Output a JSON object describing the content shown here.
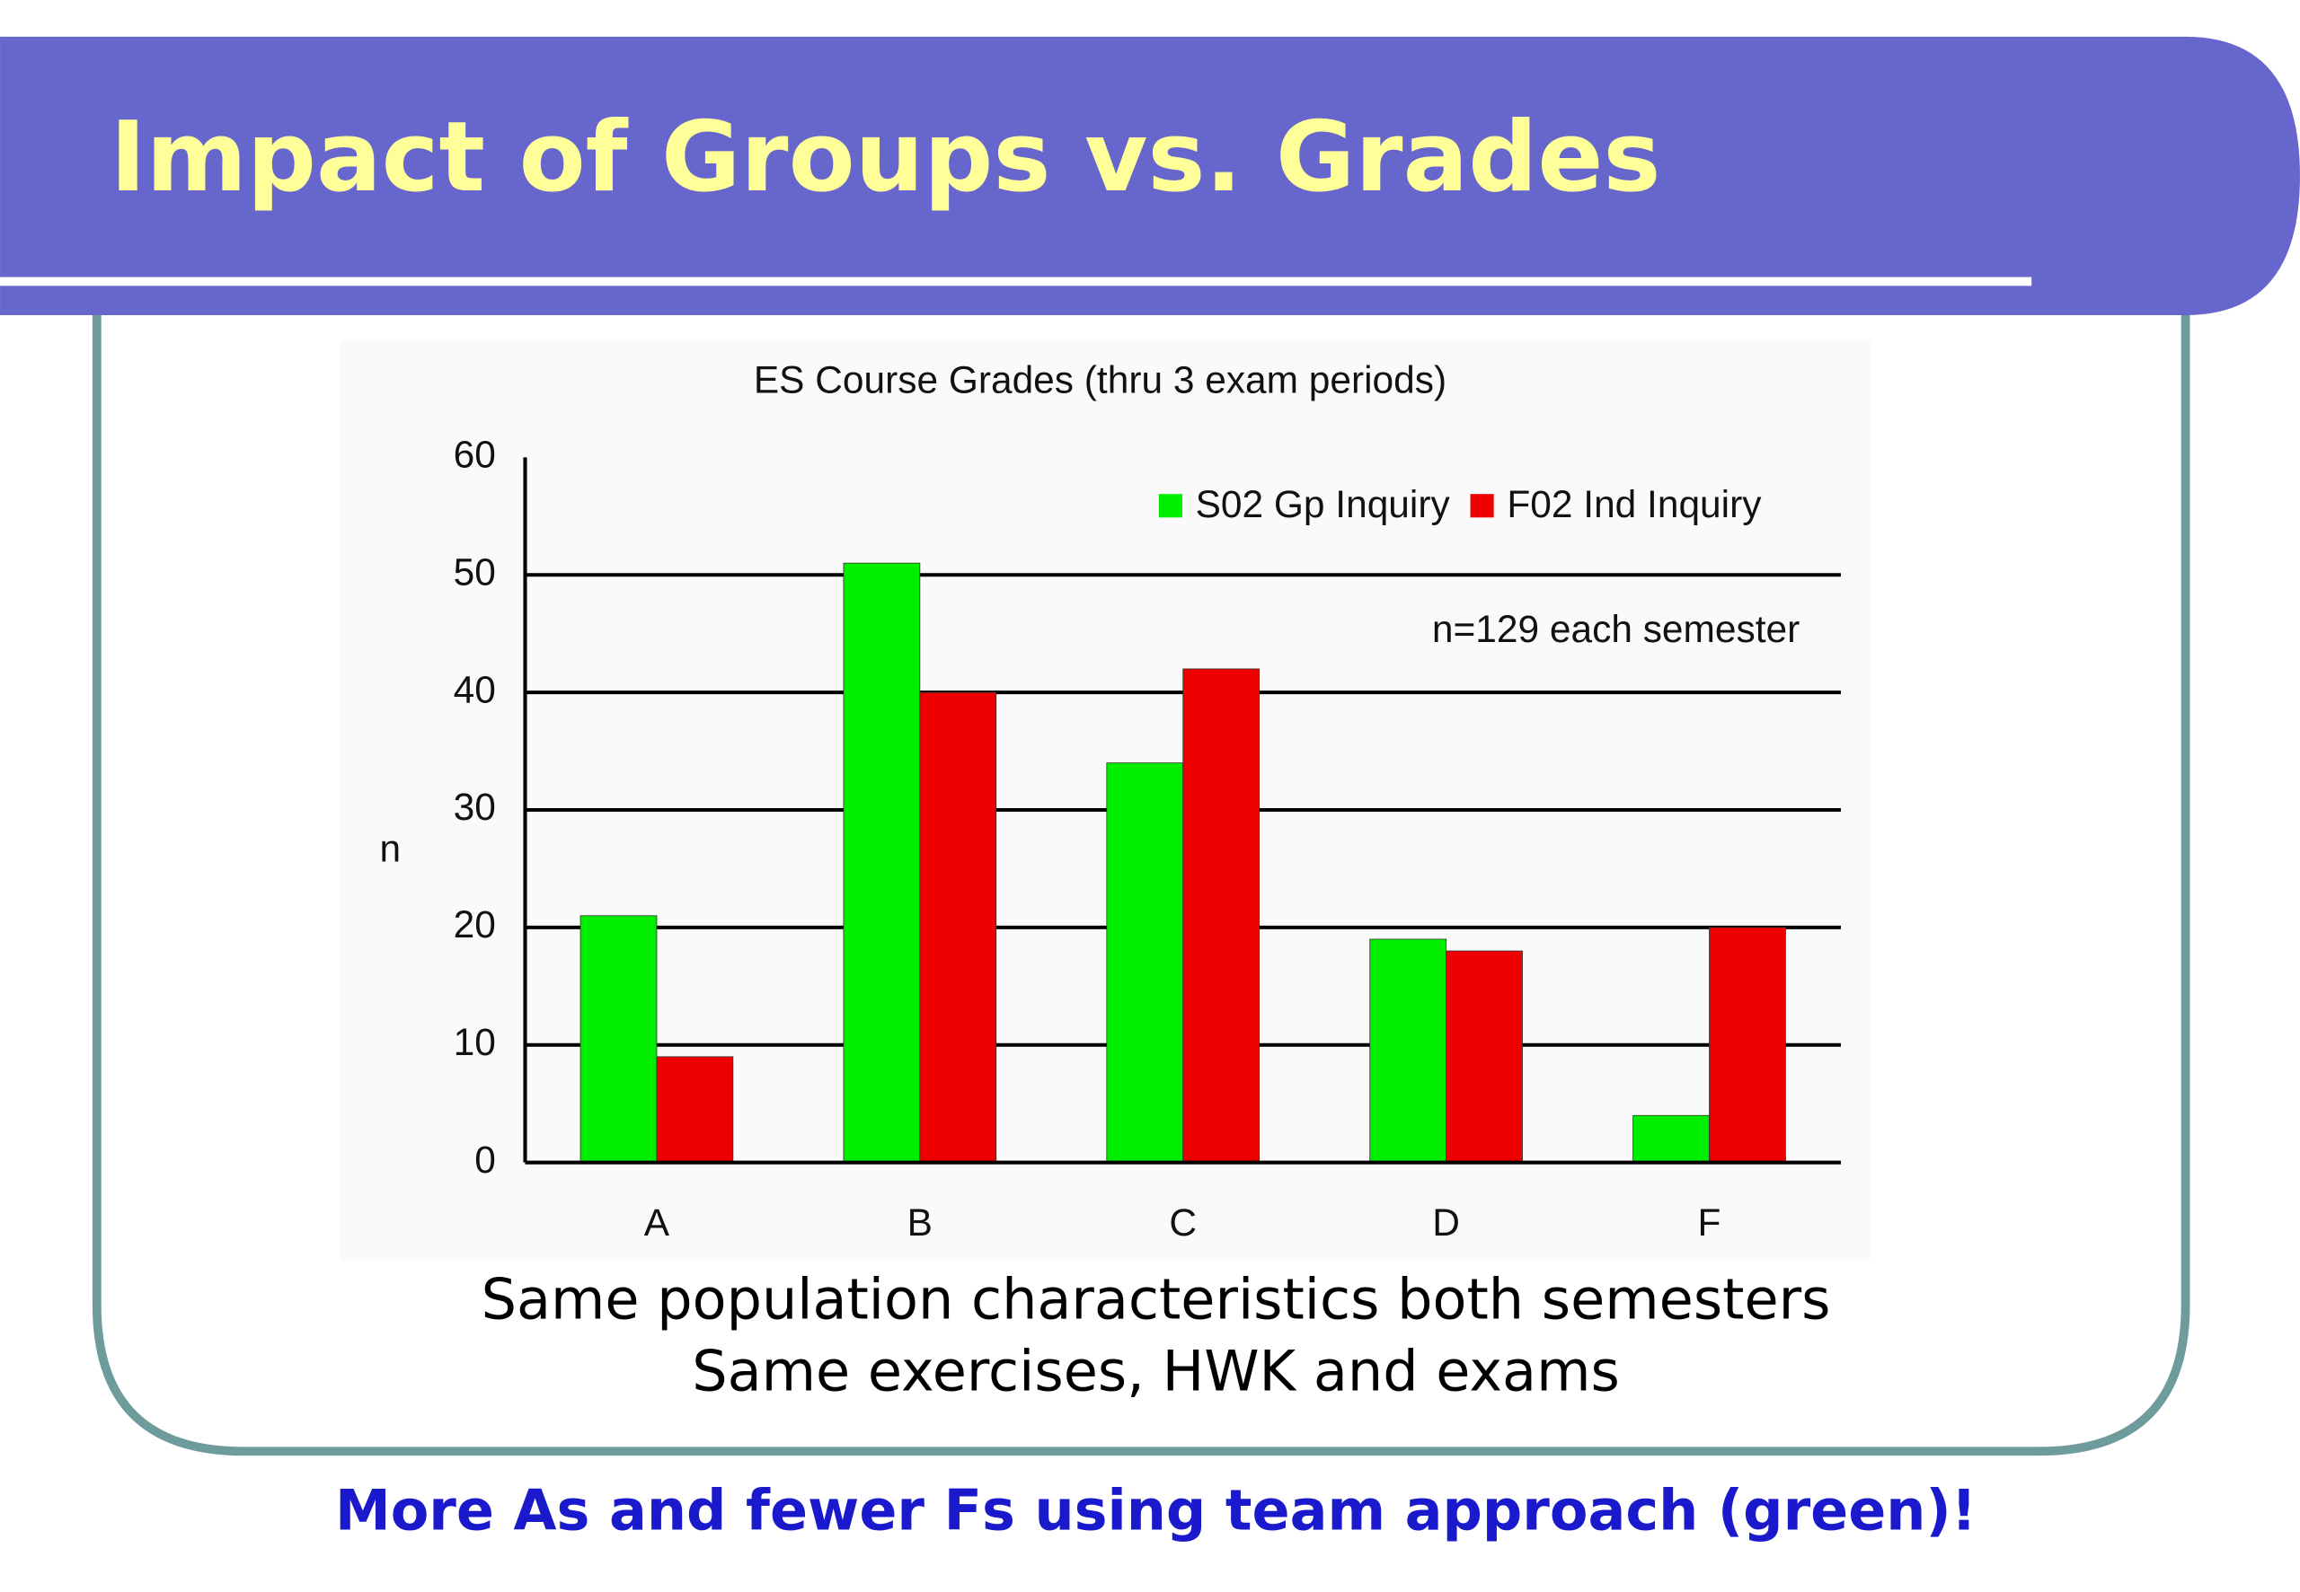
{
  "slide": {
    "title": "Impact of Groups vs. Grades",
    "notes": [
      "Same population characteristics both semesters",
      "Same exercises, HWK and exams"
    ],
    "footer": "More As and fewer Fs using team approach (green)!"
  },
  "chart_data": {
    "type": "bar",
    "title": "ES Course Grades (thru 3 exam periods)",
    "y_label": "n",
    "annotation": "n=129 each semester",
    "categories": [
      "A",
      "B",
      "C",
      "D",
      "F"
    ],
    "series": [
      {
        "name": "S02 Gp Inquiry",
        "color": "#00ee00",
        "values": [
          21,
          51,
          34,
          19,
          4
        ]
      },
      {
        "name": "F02 Ind Inquiry",
        "color": "#ee0000",
        "values": [
          9,
          40,
          42,
          18,
          20
        ]
      }
    ],
    "ylim": [
      0,
      60
    ],
    "yticks": [
      0,
      10,
      20,
      30,
      40,
      50,
      60
    ],
    "grid": true,
    "legend": "upper right"
  }
}
